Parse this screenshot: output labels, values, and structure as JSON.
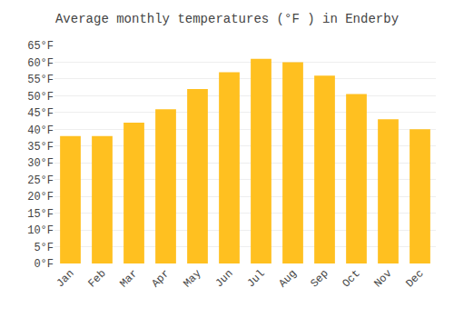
{
  "chart_data": {
    "type": "bar",
    "title": "Average monthly temperatures (°F ) in Enderby",
    "categories": [
      "Jan",
      "Feb",
      "Mar",
      "Apr",
      "May",
      "Jun",
      "Jul",
      "Aug",
      "Sep",
      "Oct",
      "Nov",
      "Dec"
    ],
    "values": [
      38,
      38,
      42,
      46,
      52,
      57,
      61,
      60,
      56,
      50.5,
      43,
      40
    ],
    "color": "#FFC020",
    "ylim": [
      0,
      65
    ],
    "yticks": [
      {
        "value": 0,
        "label": "0°F"
      },
      {
        "value": 5,
        "label": "5°F"
      },
      {
        "value": 10,
        "label": "10°F"
      },
      {
        "value": 15,
        "label": "15°F"
      },
      {
        "value": 20,
        "label": "20°F"
      },
      {
        "value": 25,
        "label": "25°F"
      },
      {
        "value": 30,
        "label": "30°F"
      },
      {
        "value": 35,
        "label": "35°F"
      },
      {
        "value": 40,
        "label": "40°F"
      },
      {
        "value": 45,
        "label": "45°F"
      },
      {
        "value": 50,
        "label": "50°F"
      },
      {
        "value": 55,
        "label": "55°F"
      },
      {
        "value": 60,
        "label": "60°F"
      },
      {
        "value": 65,
        "label": "65°F"
      }
    ],
    "grid": true
  }
}
